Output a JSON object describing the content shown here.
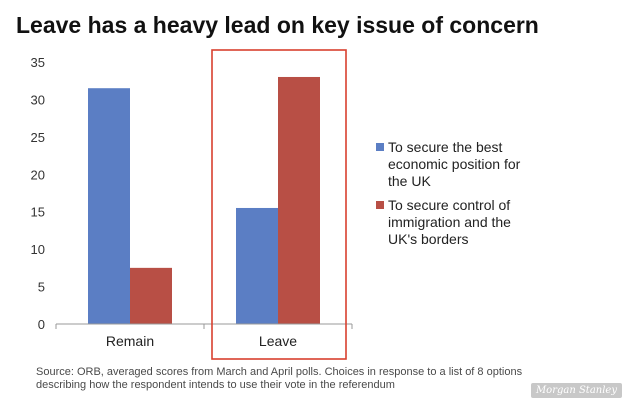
{
  "chart_data": {
    "type": "bar",
    "title": "Leave has a heavy lead on key issue of concern",
    "categories": [
      "Remain",
      "Leave"
    ],
    "series": [
      {
        "name": "To secure the best economic position for the UK",
        "color": "#5b7ec4",
        "values": [
          31.5,
          15.5
        ]
      },
      {
        "name": "To secure control of immigration and the UK's borders",
        "color": "#b84f45",
        "values": [
          7.5,
          33
        ]
      }
    ],
    "ylim": [
      0,
      35
    ],
    "yticks": [
      0,
      5,
      10,
      15,
      20,
      25,
      30,
      35
    ],
    "xlabel": "",
    "ylabel": "",
    "grid": false,
    "legend_position": "right",
    "highlight": {
      "category": "Leave",
      "color": "#d9402f"
    }
  },
  "legend_lines": [
    [
      "To secure the best",
      "economic position for",
      "the UK"
    ],
    [
      "To secure control of",
      "immigration and the",
      "UK's borders"
    ]
  ],
  "source_note": "Source: ORB, averaged scores from March and April polls. Choices in response to  a list of 8  options describing how the respondent intends to use their vote in the referendum",
  "watermark": "Morgan Stanley"
}
